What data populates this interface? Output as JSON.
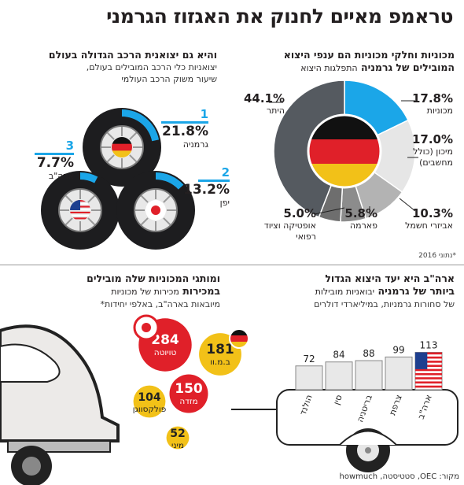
{
  "header": {
    "title": "טראמפ מאיים לחנוק את האגזוז הגרמני"
  },
  "pie_panel": {
    "title_line1": "מכוניות וחלקי מכוניות הם ענפי היצוא",
    "title_line2": "המובילים של גרמניה",
    "subtitle": "התפלגות היצוא",
    "footnote": "*נתוני 2016"
  },
  "tires_panel": {
    "title": "והיא גם יצואנית הרכב הגדולה בעולם",
    "subtitle_line1": "יצואניות כלי הרכב המובילים בעולם,",
    "subtitle_line2": "שיעור משוק הרכב העולמי",
    "items": [
      {
        "rank": "1",
        "value": "21.8%",
        "country": "גרמניה"
      },
      {
        "rank": "2",
        "value": "13.2%",
        "country": "יפן"
      },
      {
        "rank": "3",
        "value": "7.7%",
        "country": "ארה\"ב"
      }
    ]
  },
  "bars_panel": {
    "title_line1": "ארה\"ב היא יעד היצוא הגדול",
    "title_line2": "ביותר של גרמניה",
    "title_line2_rest": "יבואניות מובילות",
    "subtitle": "של סחורות גרמניות, במיליארדי דולרים"
  },
  "bubbles_panel": {
    "title_line1": "ומותגי המכוניות שלה מובילים",
    "title_line2": "במכירות",
    "title_line2_rest": "מכירות של מכוניות",
    "subtitle": "מיובאות בארה\"ב, באלפי יחידות*"
  },
  "source": "מקור: OEC, סטטיסטה, howmuch",
  "colors": {
    "accent_blue": "#1ba6e8",
    "red": "#e02029",
    "yellow": "#f2c118",
    "dark_gray": "#555a60"
  },
  "chart_data": [
    {
      "type": "pie",
      "categories": [
        "מכוניות",
        "מיכון (כולל מחשבים)",
        "אביזרי חשמל",
        "פארמה",
        "אופטיקה וציוד רפואי",
        "היתר"
      ],
      "values": [
        17.8,
        17.0,
        10.3,
        5.8,
        5.0,
        44.1
      ],
      "labels": [
        "17.8%",
        "17.0%",
        "10.3%",
        "5.8%",
        "5.0%",
        "44.1%"
      ],
      "colors": [
        "#1ba6e8",
        "#e6e6e6",
        "#b3b3b3",
        "#8c8c8c",
        "#6e6e6e",
        "#555a60"
      ]
    },
    {
      "type": "bar",
      "categories": [
        "הולנד",
        "סין",
        "בריטניה",
        "צרפת",
        "ארה\"ב"
      ],
      "values": [
        72,
        84,
        88,
        99,
        113
      ]
    },
    {
      "type": "scatter",
      "categories": [
        "טויוטה",
        "ב.מ.וו",
        "מזדה",
        "פולקסווגן",
        "מיני"
      ],
      "values": [
        284,
        181,
        150,
        104,
        52
      ]
    }
  ]
}
